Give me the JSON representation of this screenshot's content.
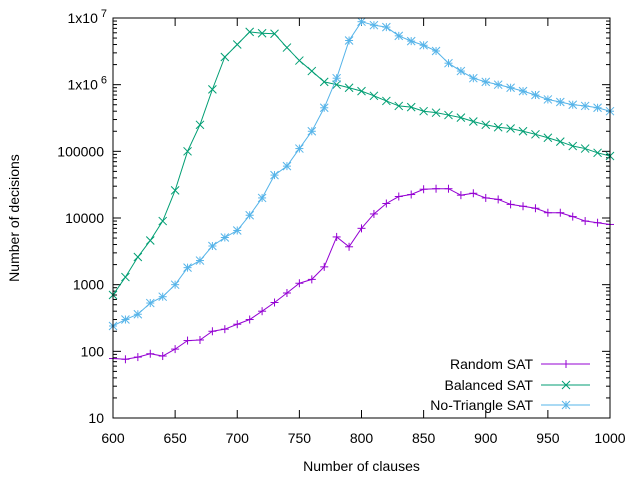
{
  "chart_data": {
    "type": "line",
    "xlabel": "Number of clauses",
    "ylabel": "Number of decisions",
    "x_scale": "linear",
    "y_scale": "log",
    "xlim": [
      600,
      1000
    ],
    "ylim": [
      10,
      10000000
    ],
    "x_ticks": [
      600,
      650,
      700,
      750,
      800,
      850,
      900,
      950,
      1000
    ],
    "x_tick_labels": [
      "600",
      "650",
      "700",
      "750",
      "800",
      "850",
      "900",
      "950",
      "1000"
    ],
    "y_ticks": [
      10,
      100,
      1000,
      10000,
      100000,
      1000000,
      10000000
    ],
    "y_tick_labels": [
      {
        "base": "10"
      },
      {
        "base": "100"
      },
      {
        "base": "1000"
      },
      {
        "base": "10000"
      },
      {
        "base": "100000"
      },
      {
        "base": "1x10",
        "exp": "6"
      },
      {
        "base": "1x10",
        "exp": "7"
      }
    ],
    "legend_position": "bottom-right",
    "series": [
      {
        "name": "Random SAT",
        "color": "#9400d3",
        "marker": "plus",
        "x": [
          600,
          610,
          620,
          630,
          640,
          650,
          660,
          670,
          680,
          690,
          700,
          710,
          720,
          730,
          740,
          750,
          760,
          770,
          780,
          790,
          800,
          810,
          820,
          830,
          840,
          850,
          860,
          870,
          880,
          890,
          900,
          910,
          920,
          930,
          940,
          950,
          960,
          970,
          980,
          990,
          1000
        ],
        "y": [
          78,
          76,
          82,
          92,
          85,
          108,
          145,
          148,
          200,
          215,
          255,
          300,
          400,
          540,
          750,
          1050,
          1200,
          1850,
          5200,
          3700,
          7000,
          11500,
          16500,
          21000,
          22500,
          27000,
          27500,
          27500,
          22000,
          23500,
          20000,
          19000,
          16000,
          15000,
          14000,
          12000,
          12000,
          10500,
          9000,
          8500,
          8000
        ]
      },
      {
        "name": "Balanced SAT",
        "color": "#009e73",
        "marker": "x",
        "x": [
          600,
          610,
          620,
          630,
          640,
          650,
          660,
          670,
          680,
          690,
          700,
          710,
          720,
          730,
          740,
          750,
          760,
          770,
          780,
          790,
          800,
          810,
          820,
          830,
          840,
          850,
          860,
          870,
          880,
          890,
          900,
          910,
          920,
          930,
          940,
          950,
          960,
          970,
          980,
          990,
          1000
        ],
        "y": [
          700,
          1300,
          2600,
          4600,
          9000,
          26000,
          100000,
          250000,
          850000,
          2600000,
          4000000,
          6200000,
          5900000,
          5800000,
          3600000,
          2300000,
          1600000,
          1100000,
          1000000,
          900000,
          800000,
          680000,
          570000,
          480000,
          460000,
          400000,
          380000,
          350000,
          320000,
          280000,
          250000,
          230000,
          220000,
          200000,
          180000,
          160000,
          140000,
          120000,
          110000,
          95000,
          85000
        ]
      },
      {
        "name": "No-Triangle SAT",
        "color": "#56b4e9",
        "marker": "star",
        "x": [
          600,
          610,
          620,
          630,
          640,
          650,
          660,
          670,
          680,
          690,
          700,
          710,
          720,
          730,
          740,
          750,
          760,
          770,
          780,
          790,
          800,
          810,
          820,
          830,
          840,
          850,
          860,
          870,
          880,
          890,
          900,
          910,
          920,
          930,
          940,
          950,
          960,
          970,
          980,
          990,
          1000
        ],
        "y": [
          240,
          300,
          360,
          530,
          660,
          1000,
          1800,
          2300,
          3800,
          5100,
          6500,
          11000,
          20000,
          44000,
          60000,
          110000,
          200000,
          450000,
          1250000,
          4600000,
          8800000,
          7800000,
          7300000,
          5400000,
          4500000,
          3900000,
          3200000,
          2100000,
          1600000,
          1250000,
          1100000,
          1000000,
          900000,
          800000,
          700000,
          600000,
          550000,
          500000,
          480000,
          450000,
          400000
        ]
      }
    ]
  }
}
